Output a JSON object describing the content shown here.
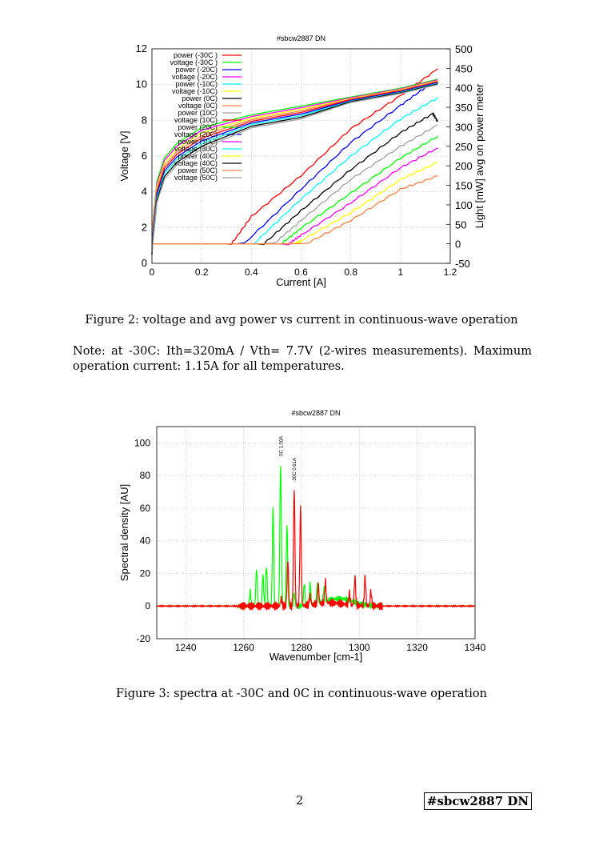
{
  "chart_data": [
    {
      "type": "line",
      "title": "#sbcw2887 DN",
      "xlabel": "Current [A]",
      "ylabel": "Voltage [V]",
      "y2label": "Light [mW] avg on power meter",
      "xlim": [
        0,
        1.2
      ],
      "ylim": [
        0,
        12
      ],
      "y2lim": [
        -50,
        500
      ],
      "xticks": [
        "0",
        "0.2",
        "0.4",
        "0.6",
        "0.8",
        "1",
        "1.2"
      ],
      "yticks": [
        "0",
        "2",
        "4",
        "6",
        "8",
        "10",
        "12"
      ],
      "y2ticks": [
        "-50",
        "0",
        "50",
        "100",
        "150",
        "200",
        "250",
        "300",
        "350",
        "400",
        "450",
        "500"
      ],
      "grid": true,
      "legend_position": "top-left",
      "voltage_current": [
        0,
        0.005,
        0.02,
        0.05,
        0.1,
        0.2,
        0.4,
        0.6,
        0.8,
        1.0,
        1.15
      ],
      "series": [
        {
          "name": "power (-30C )",
          "axis": "y2",
          "color": "#ff0000",
          "points": [
            [
              0,
              0
            ],
            [
              0.32,
              0
            ],
            [
              0.4,
              70
            ],
            [
              0.6,
              175
            ],
            [
              0.8,
              295
            ],
            [
              1.0,
              380
            ],
            [
              1.15,
              449
            ]
          ]
        },
        {
          "name": "voltage (-30C )",
          "axis": "y",
          "color": "#00ff00",
          "values": [
            0.5,
            2.5,
            4.6,
            5.9,
            6.7,
            7.6,
            8.3,
            8.8,
            9.3,
            9.8,
            10.3
          ]
        },
        {
          "name": "power (-20C)",
          "axis": "y2",
          "color": "#0000ff",
          "points": [
            [
              0,
              0
            ],
            [
              0.37,
              0
            ],
            [
              0.6,
              140
            ],
            [
              0.8,
              260
            ],
            [
              1.0,
              355
            ],
            [
              1.12,
              410
            ]
          ]
        },
        {
          "name": "voltage (-20C)",
          "axis": "y",
          "color": "#ff00ff",
          "values": [
            0.5,
            2.35,
            4.45,
            5.75,
            6.55,
            7.45,
            8.21,
            8.71,
            9.26,
            9.76,
            10.26
          ]
        },
        {
          "name": "power (-10C)",
          "axis": "y2",
          "color": "#00ffff",
          "points": [
            [
              0,
              0
            ],
            [
              0.41,
              0
            ],
            [
              0.6,
              115
            ],
            [
              0.8,
              225
            ],
            [
              1.0,
              320
            ],
            [
              1.15,
              375
            ]
          ]
        },
        {
          "name": "voltage (-10C)",
          "axis": "y",
          "color": "#ffff00",
          "values": [
            0.5,
            2.2,
            4.3,
            5.6,
            6.4,
            7.3,
            8.12,
            8.62,
            9.22,
            9.72,
            10.22
          ]
        },
        {
          "name": "power (0C)",
          "axis": "y2",
          "color": "#000000",
          "points": [
            [
              0,
              0
            ],
            [
              0.45,
              0
            ],
            [
              0.6,
              85
            ],
            [
              0.8,
              190
            ],
            [
              1.0,
              285
            ],
            [
              1.13,
              334
            ],
            [
              1.15,
              313
            ]
          ]
        },
        {
          "name": "voltage (0C)",
          "axis": "y",
          "color": "#ff8040",
          "values": [
            0.5,
            2.05,
            4.15,
            5.45,
            6.25,
            7.15,
            8.03,
            8.53,
            9.19,
            9.69,
            10.19
          ]
        },
        {
          "name": "power (10C)",
          "axis": "y2",
          "color": "#a0a0a0",
          "points": [
            [
              0,
              0
            ],
            [
              0.49,
              0
            ],
            [
              0.6,
              60
            ],
            [
              0.8,
              165
            ],
            [
              1.0,
              250
            ],
            [
              1.15,
              305
            ]
          ]
        },
        {
          "name": "voltage (10C)",
          "axis": "y",
          "color": "#ff0000",
          "values": [
            0.5,
            1.9,
            4.0,
            5.3,
            6.1,
            7.0,
            7.94,
            8.44,
            9.15,
            9.65,
            10.15
          ]
        },
        {
          "name": "power (20C)",
          "axis": "y2",
          "color": "#00ff00",
          "points": [
            [
              0,
              0
            ],
            [
              0.52,
              0
            ],
            [
              0.6,
              40
            ],
            [
              0.8,
              130
            ],
            [
              1.0,
              220
            ],
            [
              1.15,
              276
            ]
          ]
        },
        {
          "name": "voltage (20C)",
          "axis": "y",
          "color": "#0000ff",
          "values": [
            0.5,
            1.75,
            3.85,
            5.15,
            5.95,
            6.85,
            7.85,
            8.35,
            9.11,
            9.61,
            10.11
          ]
        },
        {
          "name": "power (30C)",
          "axis": "y2",
          "color": "#ff00ff",
          "points": [
            [
              0,
              0
            ],
            [
              0.55,
              0
            ],
            [
              0.6,
              22
            ],
            [
              0.8,
              105
            ],
            [
              1.0,
              195
            ],
            [
              1.15,
              246
            ]
          ]
        },
        {
          "name": "voltage (30C)",
          "axis": "y",
          "color": "#00ffff",
          "values": [
            0.5,
            1.6,
            3.7,
            5.0,
            5.8,
            6.7,
            7.76,
            8.26,
            9.07,
            9.57,
            10.07
          ]
        },
        {
          "name": "power (40C)",
          "axis": "y2",
          "color": "#ffff00",
          "points": [
            [
              0,
              0
            ],
            [
              0.58,
              0
            ],
            [
              0.6,
              8
            ],
            [
              0.8,
              80
            ],
            [
              1.0,
              165
            ],
            [
              1.15,
              209
            ]
          ]
        },
        {
          "name": "voltage (40C)",
          "axis": "y",
          "color": "#000000",
          "values": [
            0.5,
            1.45,
            3.55,
            4.85,
            5.65,
            6.55,
            7.67,
            8.17,
            9.04,
            9.54,
            10.04
          ]
        },
        {
          "name": "power (50C)",
          "axis": "y2",
          "color": "#ff8040",
          "points": [
            [
              0,
              0
            ],
            [
              0.62,
              0
            ],
            [
              0.8,
              60
            ],
            [
              1.0,
              140
            ],
            [
              1.15,
              174
            ]
          ]
        },
        {
          "name": "voltage (50C)",
          "axis": "y",
          "color": "#a0a0a0",
          "values": [
            0.5,
            1.3,
            3.4,
            4.7,
            5.5,
            6.4,
            7.58,
            8.08,
            9.0,
            9.5,
            10.0
          ]
        }
      ]
    },
    {
      "type": "line",
      "title": "#sbcw2887 DN",
      "xlabel": "Wavenumber [cm-1]",
      "ylabel": "Spectral density [AU]",
      "xlim": [
        1230,
        1340
      ],
      "ylim": [
        -20,
        110
      ],
      "xticks": [
        "1240",
        "1260",
        "1280",
        "1300",
        "1320",
        "1340"
      ],
      "yticks": [
        "-20",
        "0",
        "20",
        "40",
        "60",
        "80",
        "100"
      ],
      "grid": true,
      "series": [
        {
          "name": "0C 1.00A",
          "color": "#00ff00",
          "label_at": [
            1273,
            88
          ],
          "peaks": [
            [
              1262.3,
              9
            ],
            [
              1264.5,
              23
            ],
            [
              1266.7,
              19
            ],
            [
              1267.9,
              25
            ],
            [
              1270.2,
              60
            ],
            [
              1272.8,
              88
            ],
            [
              1275,
              49
            ],
            [
              1277.5,
              8
            ],
            [
              1281,
              14
            ],
            [
              1283,
              14
            ],
            [
              1285.5,
              12
            ],
            [
              1287.8,
              8
            ]
          ],
          "hump": [
            1293,
            4.5
          ]
        },
        {
          "name": "-30C 0.61A",
          "color": "#ff0000",
          "label_at": [
            1277.5,
            72
          ],
          "peaks": [
            [
              1273,
              5
            ],
            [
              1275.3,
              28
            ],
            [
              1277.5,
              72
            ],
            [
              1279.7,
              59
            ],
            [
              1283,
              6
            ],
            [
              1285.8,
              12
            ],
            [
              1288.3,
              13
            ],
            [
              1296.6,
              7
            ],
            [
              1298.5,
              17
            ],
            [
              1302,
              18
            ],
            [
              1304,
              9
            ]
          ],
          "hump": [
            1290,
            2
          ]
        }
      ]
    }
  ],
  "captions": {
    "fig2": "Figure 2: voltage and avg power vs current in continuous-wave operation",
    "fig3": "Figure 3: spectra at -30C and 0C in continuous-wave operation"
  },
  "note": "Note: at -30C: Ith=320mA / Vth= 7.7V (2-wires measurements). Maximum operation current: 1.15A for all temperatures.",
  "footer": {
    "page_number": "2",
    "tag": "#sbcw2887 DN"
  }
}
